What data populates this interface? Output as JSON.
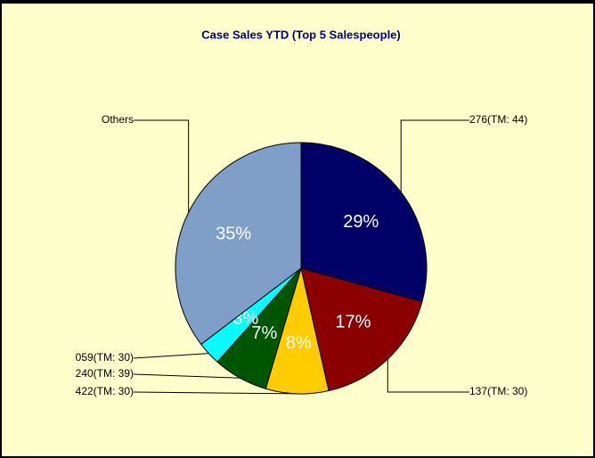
{
  "chart_data": {
    "type": "pie",
    "title": "Case Sales YTD  (Top 5 Salespeople)",
    "categories": [
      "276(TM: 44)",
      "137(TM: 30)",
      "422(TM: 30)",
      "240(TM: 39)",
      "059(TM: 30)",
      "Others"
    ],
    "values": [
      29,
      17,
      8,
      7,
      3,
      35
    ],
    "value_labels": [
      "29%",
      "17%",
      "8%",
      "7%",
      "3%",
      "35%"
    ],
    "colors": [
      "#000066",
      "#8b0000",
      "#ffcc00",
      "#005500",
      "#00ffff",
      "#7f9fc8"
    ]
  }
}
